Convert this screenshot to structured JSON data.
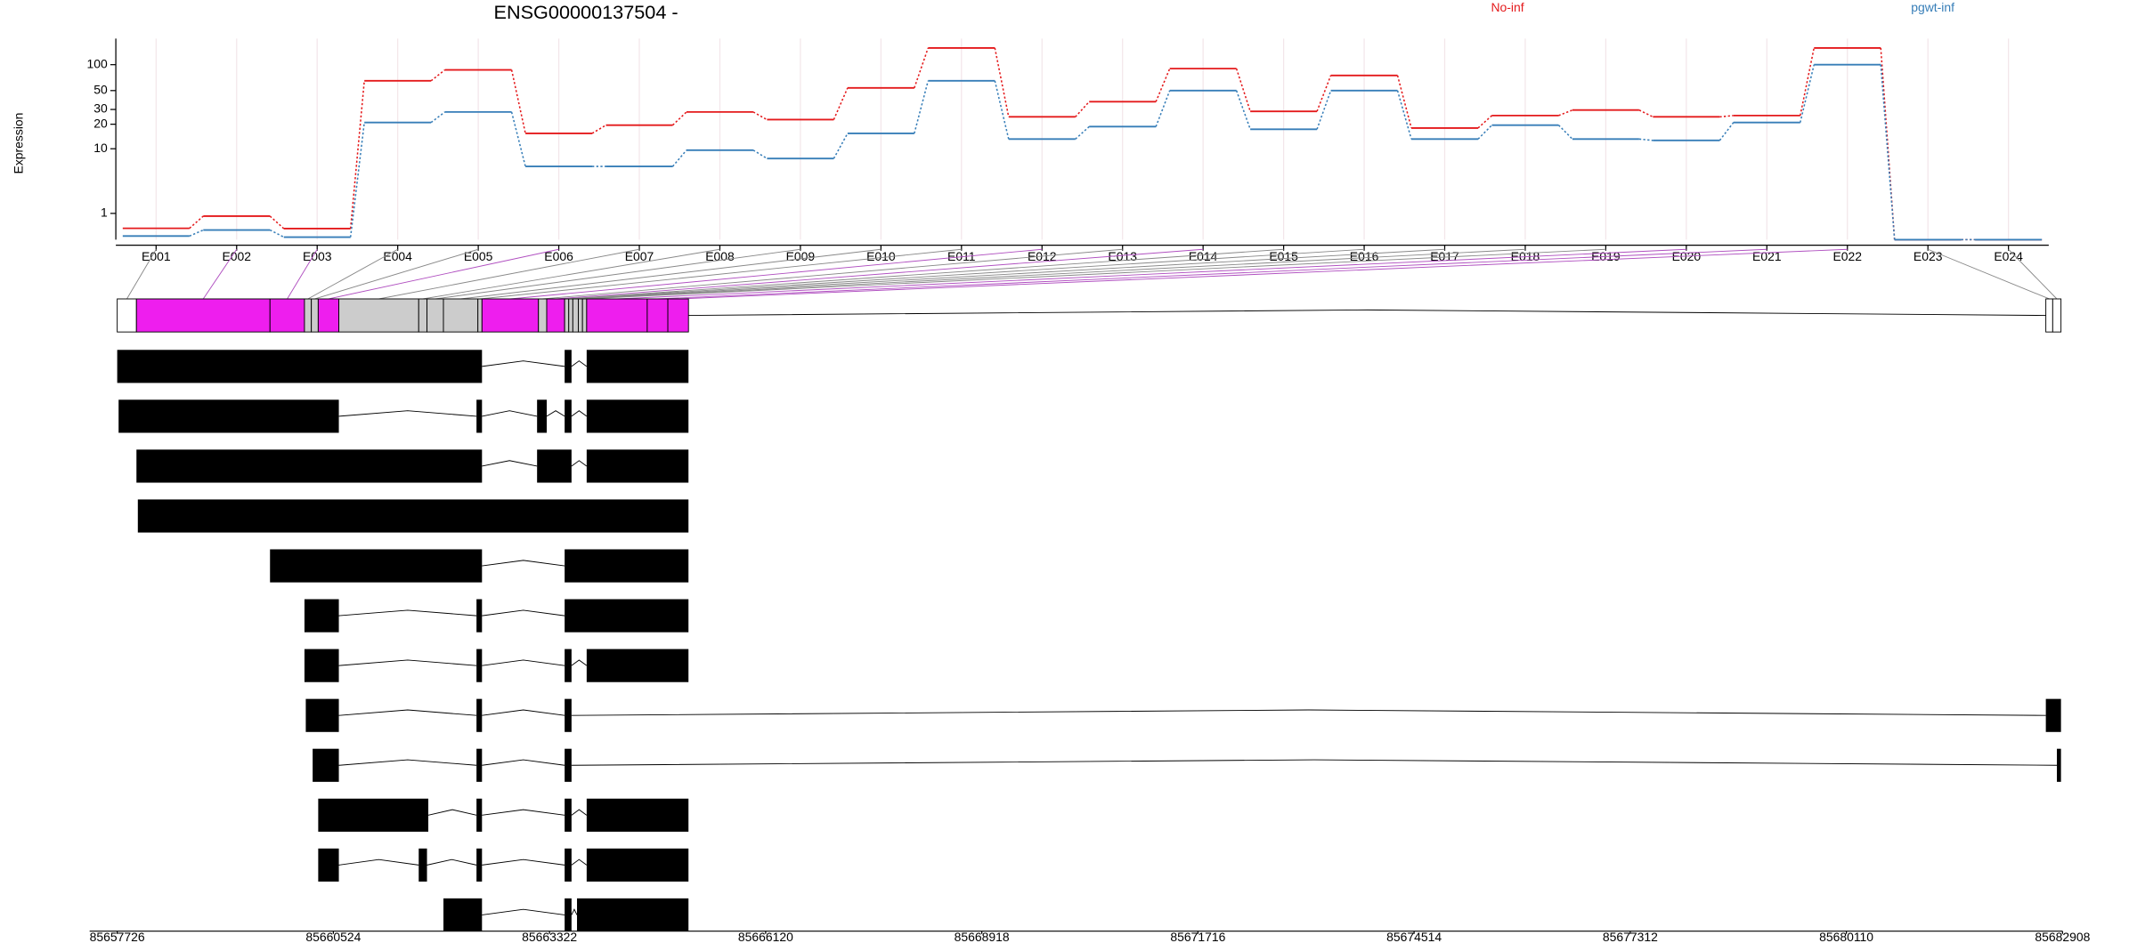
{
  "chart_data": [
    {
      "type": "line",
      "title": "ENSG00000137504 -",
      "y_label": "Expression",
      "categories": [
        "E001",
        "E002",
        "E003",
        "E004",
        "E005",
        "E006",
        "E007",
        "E008",
        "E009",
        "E010",
        "E011",
        "E012",
        "E013",
        "E014",
        "E015",
        "E016",
        "E017",
        "E018",
        "E019",
        "E020",
        "E021",
        "E022",
        "E023",
        "E024"
      ],
      "series": [
        {
          "name": "No-inf",
          "color": "#e41a1c",
          "values": [
            0.35,
            0.86,
            0.34,
            65,
            87,
            15.5,
            19.5,
            28,
            22.7,
            53.7,
            156,
            24.5,
            37,
            90,
            28.5,
            75,
            18,
            25.4,
            29.5,
            24.5,
            25.4,
            156,
            0,
            0
          ]
        },
        {
          "name": "pgwt-inf",
          "color": "#377eb8",
          "values": [
            0.1,
            0.29,
            0.07,
            21,
            28,
            5.9,
            5.9,
            9.6,
            7.5,
            15.5,
            65,
            13.2,
            18.7,
            50,
            17.4,
            50,
            13.2,
            19.5,
            13.2,
            12.7,
            21,
            100,
            0,
            0
          ]
        }
      ],
      "ylim": [
        0,
        200
      ],
      "yticks": [
        1,
        10,
        20,
        30,
        50,
        100
      ],
      "yscale": "log1p",
      "grid": true,
      "legend": "top"
    },
    {
      "type": "gene-model",
      "xlim": [
        85657726,
        85682908
      ],
      "xticks": [
        85657726,
        85660524,
        85663322,
        85666120,
        85668918,
        85671716,
        85674514,
        85677312,
        85680110,
        85682908
      ],
      "exon_bins": [
        {
          "start": 85657726,
          "end": 85657975,
          "color": "#ffffff"
        },
        {
          "start": 85657975,
          "end": 85659704,
          "color": "#ee1eee"
        },
        {
          "start": 85659704,
          "end": 85660150,
          "color": "#ee1eee"
        },
        {
          "start": 85660150,
          "end": 85660239,
          "color": "#cccccc"
        },
        {
          "start": 85660239,
          "end": 85660328,
          "color": "#cccccc"
        },
        {
          "start": 85660328,
          "end": 85660595,
          "color": "#ee1eee"
        },
        {
          "start": 85660595,
          "end": 85661629,
          "color": "#cccccc"
        },
        {
          "start": 85661629,
          "end": 85661736,
          "color": "#cccccc"
        },
        {
          "start": 85661736,
          "end": 85661949,
          "color": "#cccccc"
        },
        {
          "start": 85661949,
          "end": 85662395,
          "color": "#cccccc"
        },
        {
          "start": 85662395,
          "end": 85662448,
          "color": "#cccccc"
        },
        {
          "start": 85662448,
          "end": 85663179,
          "color": "#ee1eee"
        },
        {
          "start": 85663179,
          "end": 85663286,
          "color": "#cccccc"
        },
        {
          "start": 85663286,
          "end": 85663518,
          "color": "#ee1eee"
        },
        {
          "start": 85663518,
          "end": 85663571,
          "color": "#cccccc"
        },
        {
          "start": 85663571,
          "end": 85663624,
          "color": "#cccccc"
        },
        {
          "start": 85663624,
          "end": 85663695,
          "color": "#cccccc"
        },
        {
          "start": 85663695,
          "end": 85663749,
          "color": "#cccccc"
        },
        {
          "start": 85663749,
          "end": 85663803,
          "color": "#cccccc"
        },
        {
          "start": 85663803,
          "end": 85664587,
          "color": "#ee1eee"
        },
        {
          "start": 85664587,
          "end": 85664854,
          "color": "#ee1eee"
        },
        {
          "start": 85664854,
          "end": 85665121,
          "color": "#ee1eee"
        },
        {
          "start": 85682692,
          "end": 85682781,
          "color": "#ffffff"
        },
        {
          "start": 85682781,
          "end": 85682888,
          "color": "#ffffff"
        }
      ],
      "transcripts": [
        [
          [
            85657726,
            85662448
          ],
          [
            85663518,
            85663607
          ],
          [
            85663803,
            85665121
          ]
        ],
        [
          [
            85657744,
            85660595
          ],
          [
            85662377,
            85662448
          ],
          [
            85663161,
            85663286
          ],
          [
            85663518,
            85663607
          ],
          [
            85663803,
            85665121
          ]
        ],
        [
          [
            85657975,
            85662448
          ],
          [
            85663161,
            85663607
          ],
          [
            85663803,
            85665121
          ]
        ],
        [
          [
            85657993,
            85665121
          ]
        ],
        [
          [
            85659704,
            85662448
          ],
          [
            85663518,
            85665121
          ]
        ],
        [
          [
            85660150,
            85660595
          ],
          [
            85662377,
            85662448
          ],
          [
            85663518,
            85665121
          ]
        ],
        [
          [
            85660150,
            85660595
          ],
          [
            85662377,
            85662448
          ],
          [
            85663518,
            85663607
          ],
          [
            85663803,
            85665121
          ]
        ],
        [
          [
            85660167,
            85660595
          ],
          [
            85662377,
            85662448
          ],
          [
            85663518,
            85663607
          ],
          [
            85682692,
            85682888
          ]
        ],
        [
          [
            85660256,
            85660595
          ],
          [
            85662377,
            85662448
          ],
          [
            85663518,
            85663607
          ],
          [
            85682835,
            85682888
          ]
        ],
        [
          [
            85660328,
            85661753
          ],
          [
            85662377,
            85662448
          ],
          [
            85663518,
            85663607
          ],
          [
            85663803,
            85665121
          ]
        ],
        [
          [
            85660328,
            85660595
          ],
          [
            85661629,
            85661736
          ],
          [
            85662377,
            85662448
          ],
          [
            85663518,
            85663607
          ],
          [
            85663803,
            85665121
          ]
        ],
        [
          [
            85661949,
            85662448
          ],
          [
            85663518,
            85663607
          ],
          [
            85663678,
            85665121
          ]
        ]
      ]
    }
  ]
}
